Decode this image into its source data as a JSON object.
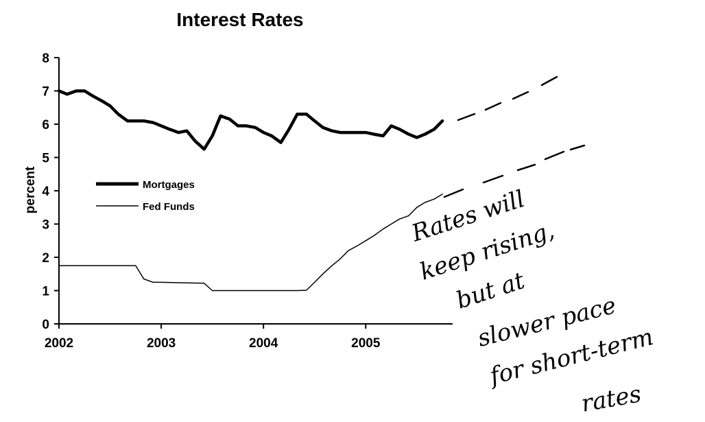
{
  "chart_data": {
    "type": "line",
    "title": "Interest Rates",
    "xlabel": "",
    "ylabel": "percent",
    "xlim": [
      2002,
      2005.85
    ],
    "ylim": [
      0,
      8
    ],
    "x_ticks": [
      "2002",
      "2003",
      "2004",
      "2005"
    ],
    "y_ticks": [
      "0",
      "1",
      "2",
      "3",
      "4",
      "5",
      "6",
      "7",
      "8"
    ],
    "grid": false,
    "legend_position": "middle-left",
    "series": [
      {
        "name": "Mortgages",
        "style": "thick",
        "x": [
          2002.0,
          2002.08,
          2002.17,
          2002.25,
          2002.33,
          2002.42,
          2002.5,
          2002.58,
          2002.67,
          2002.75,
          2002.83,
          2002.92,
          2003.0,
          2003.08,
          2003.17,
          2003.25,
          2003.33,
          2003.42,
          2003.5,
          2003.58,
          2003.67,
          2003.75,
          2003.83,
          2003.92,
          2004.0,
          2004.08,
          2004.17,
          2004.25,
          2004.33,
          2004.42,
          2004.5,
          2004.58,
          2004.67,
          2004.75,
          2004.83,
          2004.92,
          2005.0,
          2005.08,
          2005.17,
          2005.25,
          2005.33,
          2005.42,
          2005.5,
          2005.58,
          2005.67,
          2005.75
        ],
        "y": [
          7.0,
          6.9,
          7.0,
          7.0,
          6.85,
          6.7,
          6.55,
          6.3,
          6.1,
          6.1,
          6.1,
          6.05,
          5.95,
          5.85,
          5.75,
          5.8,
          5.5,
          5.25,
          5.65,
          6.25,
          6.15,
          5.95,
          5.95,
          5.9,
          5.75,
          5.65,
          5.45,
          5.85,
          6.3,
          6.3,
          6.1,
          5.9,
          5.8,
          5.75,
          5.75,
          5.75,
          5.75,
          5.7,
          5.65,
          5.95,
          5.85,
          5.7,
          5.6,
          5.7,
          5.85,
          6.1
        ]
      },
      {
        "name": "Fed Funds",
        "style": "thin",
        "x": [
          2002.0,
          2002.75,
          2002.83,
          2002.92,
          2003.0,
          2003.42,
          2003.5,
          2003.58,
          2003.67,
          2004.0,
          2004.33,
          2004.42,
          2004.5,
          2004.58,
          2004.67,
          2004.75,
          2004.83,
          2004.92,
          2005.0,
          2005.08,
          2005.17,
          2005.25,
          2005.33,
          2005.42,
          2005.5,
          2005.58,
          2005.67,
          2005.75
        ],
        "y": [
          1.75,
          1.75,
          1.35,
          1.25,
          1.25,
          1.22,
          1.0,
          1.0,
          1.0,
          1.0,
          1.0,
          1.01,
          1.25,
          1.5,
          1.75,
          1.95,
          2.2,
          2.35,
          2.5,
          2.65,
          2.85,
          3.0,
          3.15,
          3.25,
          3.5,
          3.65,
          3.75,
          3.9
        ]
      }
    ],
    "annotation": {
      "text_lines": [
        "Rates will",
        "keep rising,",
        "but at",
        "slower pace",
        "for short-term",
        "rates"
      ]
    }
  }
}
